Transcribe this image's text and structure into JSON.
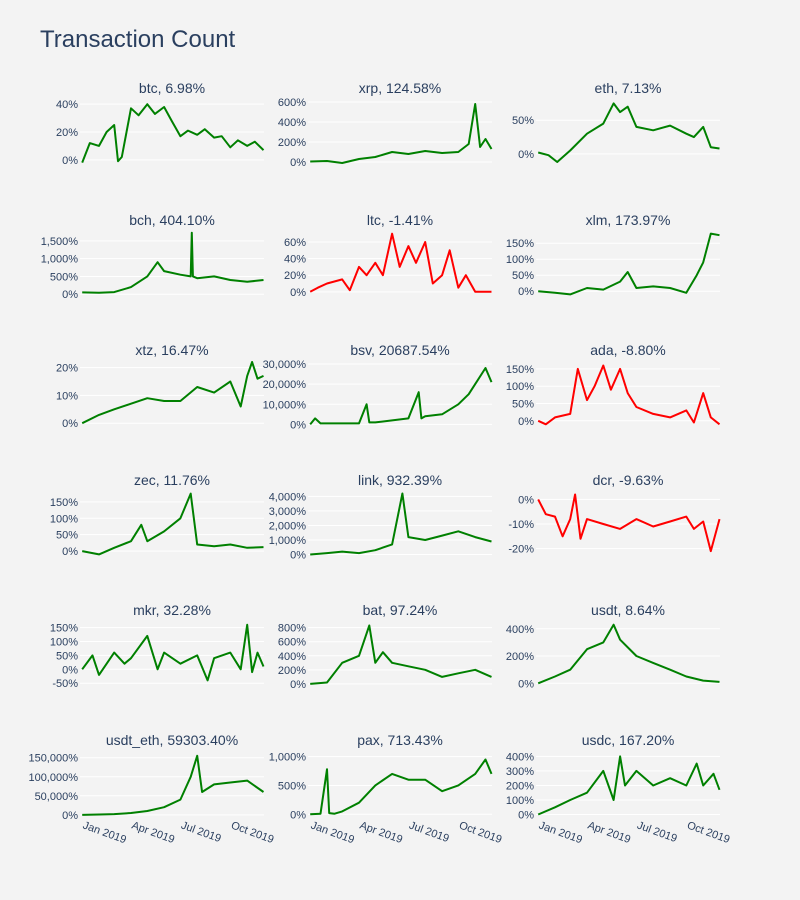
{
  "page": {
    "title": "Transaction Count",
    "background": "#f3f3f3"
  },
  "colors": {
    "positive": "#008000",
    "negative": "#ff0000",
    "text": "#2a3f5f",
    "grid": "#ffffff"
  },
  "chart_data": [
    {
      "type": "line",
      "title": "btc, 6.98%",
      "color": "#008000",
      "yticks": [
        0,
        20,
        40
      ],
      "yfmt": "%",
      "ylim": [
        -3,
        43
      ],
      "x": [
        "2019-01-01",
        "2019-01-15",
        "2019-02-01",
        "2019-02-15",
        "2019-03-01",
        "2019-03-08",
        "2019-03-15",
        "2019-04-01",
        "2019-04-15",
        "2019-05-01",
        "2019-05-15",
        "2019-06-01",
        "2019-06-15",
        "2019-07-01",
        "2019-07-15",
        "2019-08-01",
        "2019-08-15",
        "2019-09-01",
        "2019-09-15",
        "2019-10-01",
        "2019-10-15",
        "2019-11-01",
        "2019-11-15",
        "2019-12-01"
      ],
      "y": [
        -2,
        12,
        10,
        20,
        25,
        -1,
        2,
        37,
        32,
        40,
        33,
        38,
        28,
        17,
        21,
        18,
        22,
        16,
        17,
        9,
        14,
        10,
        13,
        7
      ]
    },
    {
      "type": "line",
      "title": "xrp, 124.58%",
      "color": "#008000",
      "yticks": [
        0,
        200,
        400,
        600
      ],
      "yfmt": "%",
      "ylim": [
        -20,
        620
      ],
      "x": [
        "2019-01-01",
        "2019-02-01",
        "2019-03-01",
        "2019-04-01",
        "2019-05-01",
        "2019-06-01",
        "2019-07-01",
        "2019-08-01",
        "2019-09-01",
        "2019-10-01",
        "2019-10-20",
        "2019-11-01",
        "2019-11-10",
        "2019-11-20",
        "2019-12-01"
      ],
      "y": [
        5,
        10,
        -10,
        30,
        50,
        100,
        80,
        110,
        90,
        100,
        180,
        580,
        150,
        230,
        130
      ]
    },
    {
      "type": "line",
      "title": "eth, 7.13%",
      "color": "#008000",
      "yticks": [
        0,
        50
      ],
      "yfmt": "%",
      "ylim": [
        -15,
        80
      ],
      "x": [
        "2019-01-01",
        "2019-01-20",
        "2019-02-05",
        "2019-03-01",
        "2019-04-01",
        "2019-05-01",
        "2019-05-20",
        "2019-06-01",
        "2019-06-15",
        "2019-07-01",
        "2019-08-01",
        "2019-09-01",
        "2019-10-01",
        "2019-10-15",
        "2019-11-01",
        "2019-11-15",
        "2019-12-01"
      ],
      "y": [
        2,
        -2,
        -12,
        5,
        30,
        45,
        75,
        62,
        70,
        40,
        35,
        42,
        30,
        25,
        40,
        10,
        8
      ]
    },
    {
      "type": "line",
      "title": "bch, 404.10%",
      "color": "#008000",
      "yticks": [
        0,
        500,
        1000,
        1500
      ],
      "yfmt": "%",
      "ylim": [
        -50,
        1750
      ],
      "x": [
        "2019-01-01",
        "2019-02-01",
        "2019-03-01",
        "2019-04-01",
        "2019-05-01",
        "2019-05-20",
        "2019-06-01",
        "2019-07-01",
        "2019-07-20",
        "2019-07-22",
        "2019-07-24",
        "2019-08-01",
        "2019-09-01",
        "2019-10-01",
        "2019-11-01",
        "2019-12-01"
      ],
      "y": [
        50,
        40,
        60,
        200,
        500,
        900,
        650,
        550,
        500,
        1730,
        500,
        450,
        500,
        400,
        350,
        400
      ]
    },
    {
      "type": "line",
      "title": "ltc, -1.41%",
      "color": "#ff0000",
      "yticks": [
        0,
        20,
        40,
        60
      ],
      "yfmt": "%",
      "ylim": [
        -5,
        72
      ],
      "x": [
        "2019-01-01",
        "2019-01-15",
        "2019-02-01",
        "2019-03-01",
        "2019-03-15",
        "2019-04-01",
        "2019-04-15",
        "2019-05-01",
        "2019-05-15",
        "2019-06-01",
        "2019-06-15",
        "2019-07-01",
        "2019-07-15",
        "2019-08-01",
        "2019-08-15",
        "2019-09-01",
        "2019-09-15",
        "2019-10-01",
        "2019-10-15",
        "2019-11-01",
        "2019-11-15",
        "2019-12-01"
      ],
      "y": [
        0,
        5,
        10,
        15,
        2,
        30,
        20,
        35,
        20,
        70,
        30,
        55,
        35,
        60,
        10,
        20,
        50,
        5,
        20,
        0,
        0,
        0
      ]
    },
    {
      "type": "line",
      "title": "xlm, 173.97%",
      "color": "#008000",
      "yticks": [
        0,
        50,
        100,
        150
      ],
      "yfmt": "%",
      "ylim": [
        -15,
        185
      ],
      "x": [
        "2019-01-01",
        "2019-02-01",
        "2019-03-01",
        "2019-04-01",
        "2019-05-01",
        "2019-06-01",
        "2019-06-15",
        "2019-07-01",
        "2019-08-01",
        "2019-09-01",
        "2019-10-01",
        "2019-10-20",
        "2019-11-01",
        "2019-11-15",
        "2019-12-01"
      ],
      "y": [
        0,
        -5,
        -10,
        10,
        5,
        30,
        60,
        10,
        15,
        10,
        -5,
        50,
        90,
        180,
        175
      ]
    },
    {
      "type": "line",
      "title": "xtz, 16.47%",
      "color": "#008000",
      "yticks": [
        0,
        10,
        20
      ],
      "yfmt": "%",
      "ylim": [
        -1,
        22
      ],
      "x": [
        "2019-01-01",
        "2019-02-01",
        "2019-03-01",
        "2019-04-01",
        "2019-05-01",
        "2019-06-01",
        "2019-07-01",
        "2019-08-01",
        "2019-09-01",
        "2019-10-01",
        "2019-10-20",
        "2019-11-01",
        "2019-11-10",
        "2019-11-20",
        "2019-12-01"
      ],
      "y": [
        0,
        3,
        5,
        7,
        9,
        8,
        8,
        13,
        11,
        15,
        6,
        17,
        22,
        16,
        17
      ]
    },
    {
      "type": "line",
      "title": "bsv, 20687.54%",
      "color": "#008000",
      "yticks": [
        0,
        10000,
        20000,
        30000
      ],
      "yfmt": "%",
      "ylim": [
        -800,
        31000
      ],
      "x": [
        "2019-01-01",
        "2019-01-10",
        "2019-01-20",
        "2019-02-01",
        "2019-03-01",
        "2019-04-01",
        "2019-04-15",
        "2019-04-20",
        "2019-05-01",
        "2019-06-01",
        "2019-07-01",
        "2019-07-20",
        "2019-07-25",
        "2019-08-01",
        "2019-09-01",
        "2019-10-01",
        "2019-10-20",
        "2019-11-01",
        "2019-11-20",
        "2019-12-01"
      ],
      "y": [
        0,
        3000,
        500,
        500,
        500,
        500,
        10000,
        1000,
        1000,
        2000,
        3000,
        16000,
        3000,
        4000,
        5000,
        10000,
        15000,
        20000,
        28000,
        21000
      ]
    },
    {
      "type": "line",
      "title": "ada, -8.80%",
      "color": "#ff0000",
      "yticks": [
        0,
        50,
        100,
        150
      ],
      "yfmt": "%",
      "ylim": [
        -15,
        170
      ],
      "x": [
        "2019-01-01",
        "2019-01-15",
        "2019-02-01",
        "2019-03-01",
        "2019-03-15",
        "2019-04-01",
        "2019-04-15",
        "2019-05-01",
        "2019-05-15",
        "2019-06-01",
        "2019-06-15",
        "2019-07-01",
        "2019-08-01",
        "2019-09-01",
        "2019-10-01",
        "2019-10-15",
        "2019-11-01",
        "2019-11-15",
        "2019-12-01"
      ],
      "y": [
        0,
        -10,
        10,
        20,
        150,
        60,
        100,
        160,
        90,
        150,
        80,
        40,
        20,
        10,
        30,
        -5,
        80,
        10,
        -10
      ]
    },
    {
      "type": "line",
      "title": "zec, 11.76%",
      "color": "#008000",
      "yticks": [
        0,
        50,
        100,
        150
      ],
      "yfmt": "%",
      "ylim": [
        -15,
        180
      ],
      "x": [
        "2019-01-01",
        "2019-02-01",
        "2019-03-01",
        "2019-04-01",
        "2019-04-20",
        "2019-05-01",
        "2019-06-01",
        "2019-07-01",
        "2019-07-20",
        "2019-08-01",
        "2019-09-01",
        "2019-10-01",
        "2019-11-01",
        "2019-12-01"
      ],
      "y": [
        0,
        -10,
        10,
        30,
        80,
        30,
        60,
        100,
        175,
        20,
        15,
        20,
        10,
        12
      ]
    },
    {
      "type": "line",
      "title": "link, 932.39%",
      "color": "#008000",
      "yticks": [
        0,
        1000,
        2000,
        3000,
        4000
      ],
      "yfmt": "%",
      "ylim": [
        -100,
        4300
      ],
      "x": [
        "2019-01-01",
        "2019-02-01",
        "2019-03-01",
        "2019-04-01",
        "2019-05-01",
        "2019-06-01",
        "2019-06-20",
        "2019-07-01",
        "2019-08-01",
        "2019-09-01",
        "2019-10-01",
        "2019-11-01",
        "2019-12-01"
      ],
      "y": [
        0,
        100,
        200,
        100,
        300,
        700,
        4200,
        1200,
        1000,
        1300,
        1600,
        1200,
        900
      ]
    },
    {
      "type": "line",
      "title": "dcr, -9.63%",
      "color": "#ff0000",
      "yticks": [
        0,
        -10,
        -20
      ],
      "yfmt": "%",
      "ylim": [
        -23,
        3
      ],
      "x": [
        "2019-01-01",
        "2019-01-15",
        "2019-02-01",
        "2019-02-15",
        "2019-03-01",
        "2019-03-10",
        "2019-03-20",
        "2019-04-01",
        "2019-05-01",
        "2019-06-01",
        "2019-07-01",
        "2019-08-01",
        "2019-09-01",
        "2019-10-01",
        "2019-10-15",
        "2019-11-01",
        "2019-11-15",
        "2019-12-01"
      ],
      "y": [
        0,
        -6,
        -7,
        -15,
        -8,
        2,
        -16,
        -8,
        -10,
        -12,
        -8,
        -11,
        -9,
        -7,
        -12,
        -9,
        -21,
        -8
      ]
    },
    {
      "type": "line",
      "title": "mkr, 32.28%",
      "color": "#008000",
      "yticks": [
        -50,
        0,
        50,
        100,
        150
      ],
      "yfmt": "%",
      "ylim": [
        -60,
        170
      ],
      "x": [
        "2019-01-01",
        "2019-01-20",
        "2019-02-01",
        "2019-03-01",
        "2019-03-20",
        "2019-04-01",
        "2019-05-01",
        "2019-05-20",
        "2019-06-01",
        "2019-07-01",
        "2019-08-01",
        "2019-08-20",
        "2019-09-01",
        "2019-10-01",
        "2019-10-20",
        "2019-11-01",
        "2019-11-10",
        "2019-11-20",
        "2019-12-01"
      ],
      "y": [
        0,
        50,
        -20,
        60,
        20,
        40,
        120,
        0,
        60,
        20,
        50,
        -40,
        40,
        60,
        0,
        160,
        -10,
        60,
        10
      ]
    },
    {
      "type": "line",
      "title": "bat, 97.24%",
      "color": "#008000",
      "yticks": [
        0,
        200,
        400,
        600,
        800
      ],
      "yfmt": "%",
      "ylim": [
        -30,
        880
      ],
      "x": [
        "2019-01-01",
        "2019-02-01",
        "2019-03-01",
        "2019-04-01",
        "2019-04-20",
        "2019-05-01",
        "2019-05-15",
        "2019-06-01",
        "2019-07-01",
        "2019-08-01",
        "2019-09-01",
        "2019-10-01",
        "2019-11-01",
        "2019-12-01"
      ],
      "y": [
        0,
        20,
        300,
        400,
        830,
        300,
        450,
        300,
        250,
        200,
        100,
        150,
        200,
        100
      ]
    },
    {
      "type": "line",
      "title": "usdt, 8.64%",
      "color": "#008000",
      "yticks": [
        0,
        200,
        400
      ],
      "yfmt": "%",
      "ylim": [
        -20,
        450
      ],
      "x": [
        "2019-01-01",
        "2019-02-01",
        "2019-03-01",
        "2019-04-01",
        "2019-05-01",
        "2019-05-20",
        "2019-06-01",
        "2019-07-01",
        "2019-08-01",
        "2019-09-01",
        "2019-10-01",
        "2019-11-01",
        "2019-12-01"
      ],
      "y": [
        0,
        50,
        100,
        250,
        300,
        430,
        320,
        200,
        150,
        100,
        50,
        20,
        10
      ]
    },
    {
      "type": "line",
      "title": "usdt_eth, 59303.40%",
      "color": "#008000",
      "yticks": [
        0,
        50000,
        100000,
        150000
      ],
      "yfmt": "%",
      "ylim": [
        -3000,
        165000
      ],
      "x": [
        "2019-01-01",
        "2019-02-01",
        "2019-03-01",
        "2019-04-01",
        "2019-05-01",
        "2019-06-01",
        "2019-07-01",
        "2019-07-20",
        "2019-08-01",
        "2019-08-10",
        "2019-09-01",
        "2019-10-01",
        "2019-11-01",
        "2019-12-01"
      ],
      "y": [
        0,
        1000,
        2000,
        5000,
        10000,
        20000,
        40000,
        100000,
        155000,
        60000,
        80000,
        85000,
        90000,
        60000
      ]
    },
    {
      "type": "line",
      "title": "pax, 713.43%",
      "color": "#008000",
      "yticks": [
        0,
        500,
        1000
      ],
      "yfmt": "%",
      "ylim": [
        -30,
        1080
      ],
      "x": [
        "2019-01-01",
        "2019-01-20",
        "2019-02-01",
        "2019-02-05",
        "2019-02-15",
        "2019-03-01",
        "2019-04-01",
        "2019-05-01",
        "2019-06-01",
        "2019-07-01",
        "2019-08-01",
        "2019-09-01",
        "2019-10-01",
        "2019-11-01",
        "2019-11-20",
        "2019-12-01"
      ],
      "y": [
        0,
        10,
        780,
        20,
        10,
        50,
        200,
        500,
        700,
        600,
        600,
        400,
        500,
        700,
        950,
        700
      ]
    },
    {
      "type": "line",
      "title": "usdc, 167.20%",
      "color": "#008000",
      "yticks": [
        0,
        100,
        200,
        300,
        400
      ],
      "yfmt": "%",
      "ylim": [
        -10,
        430
      ],
      "x": [
        "2019-01-01",
        "2019-02-01",
        "2019-03-01",
        "2019-04-01",
        "2019-05-01",
        "2019-05-20",
        "2019-06-01",
        "2019-06-10",
        "2019-07-01",
        "2019-08-01",
        "2019-09-01",
        "2019-10-01",
        "2019-10-20",
        "2019-11-01",
        "2019-11-20",
        "2019-12-01"
      ],
      "y": [
        0,
        50,
        100,
        150,
        300,
        100,
        400,
        200,
        300,
        200,
        250,
        200,
        350,
        200,
        280,
        170
      ]
    }
  ],
  "x_axis": {
    "ticks": [
      "2019-01-01",
      "2019-04-01",
      "2019-07-01",
      "2019-10-01"
    ],
    "labels": [
      "Jan 2019",
      "Apr 2019",
      "Jul 2019",
      "Oct 2019"
    ],
    "range": [
      "2018-12-28",
      "2019-12-02"
    ]
  }
}
